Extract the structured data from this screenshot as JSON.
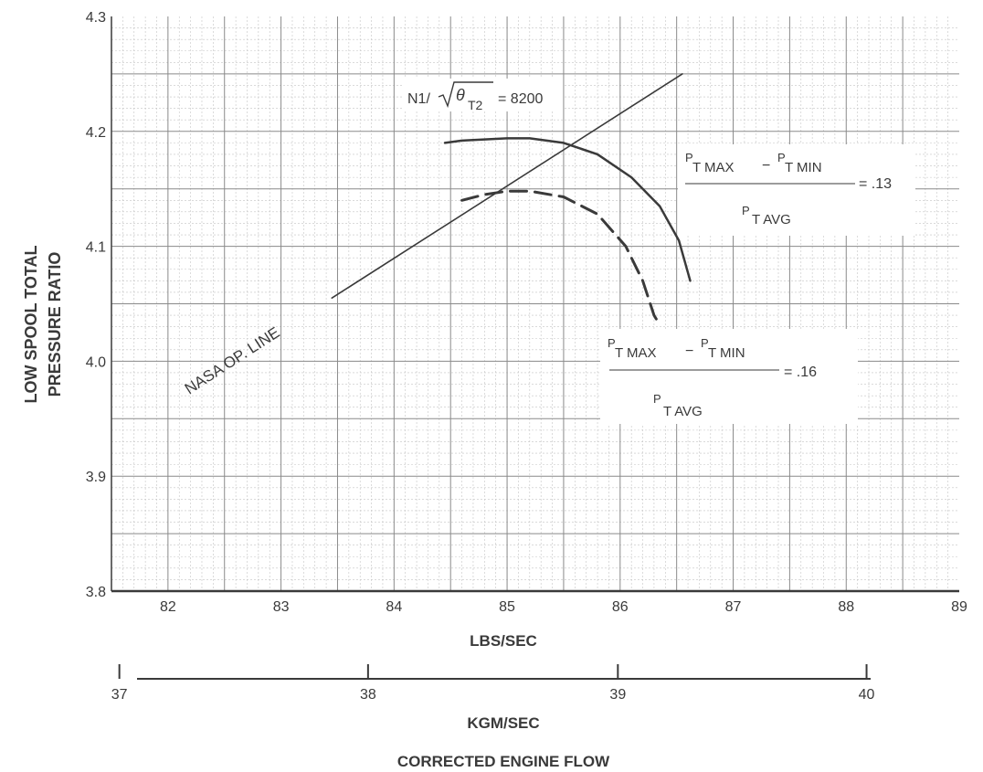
{
  "chart_data": {
    "type": "line",
    "title": "",
    "xlabel": "LBS/SEC",
    "xlabel2": "KGM/SEC",
    "xlabel_footer": "CORRECTED ENGINE FLOW",
    "ylabel_line1": "LOW SPOOL TOTAL",
    "ylabel_line2": "PRESSURE RATIO",
    "xlim": [
      81.5,
      89
    ],
    "ylim": [
      3.8,
      4.3
    ],
    "x_ticks": [
      "82",
      "83",
      "84",
      "85",
      "86",
      "87",
      "88",
      "89"
    ],
    "y_ticks": [
      "3.8",
      "3.9",
      "4.0",
      "4.1",
      "4.2",
      "4.3"
    ],
    "secondary_axis": {
      "ticks": [
        "37",
        "38",
        "39",
        "40"
      ],
      "lbs_per_tick": [
        81.57,
        83.77,
        85.98,
        88.18
      ]
    },
    "grid": true,
    "series": [
      {
        "name": "NASA OP. LINE",
        "style": "solid",
        "x": [
          83.45,
          86.55
        ],
        "y": [
          4.055,
          4.25
        ]
      },
      {
        "name": "0.13",
        "style": "solid",
        "x": [
          84.45,
          84.6,
          84.8,
          85.0,
          85.2,
          85.5,
          85.8,
          86.1,
          86.35,
          86.52,
          86.62
        ],
        "y": [
          4.19,
          4.192,
          4.193,
          4.194,
          4.194,
          4.19,
          4.18,
          4.16,
          4.135,
          4.105,
          4.07
        ]
      },
      {
        "name": "0.16",
        "style": "dashed",
        "x": [
          84.6,
          84.8,
          85.0,
          85.2,
          85.5,
          85.8,
          86.05,
          86.2,
          86.3,
          86.33
        ],
        "y": [
          4.14,
          4.145,
          4.148,
          4.148,
          4.143,
          4.128,
          4.1,
          4.07,
          4.04,
          4.035
        ]
      }
    ],
    "annotations": {
      "op_line": "NASA OP. LINE",
      "speed_prefix": "N1/",
      "speed_theta": "θ",
      "speed_sub": "T2",
      "speed_value": "= 8200",
      "dist1_numerator_p1": "P",
      "dist1_numerator_sub1": "T MAX",
      "dist1_minus": "−",
      "dist1_numerator_p2": "P",
      "dist1_numerator_sub2": "T MIN",
      "dist1_denominator_p": "P",
      "dist1_denominator_sub": "T AVG",
      "dist1_value": "= .13",
      "dist2_numerator_p1": "P",
      "dist2_numerator_sub1": "T MAX",
      "dist2_minus": "−",
      "dist2_numerator_p2": "P",
      "dist2_numerator_sub2": "T MIN",
      "dist2_denominator_p": "P",
      "dist2_denominator_sub": "T AVG",
      "dist2_value": "= .16"
    },
    "colors": {
      "ink": "#3a3a3a",
      "grid": "#8a8a8a",
      "minor_grid": "#c4c4c4"
    }
  }
}
